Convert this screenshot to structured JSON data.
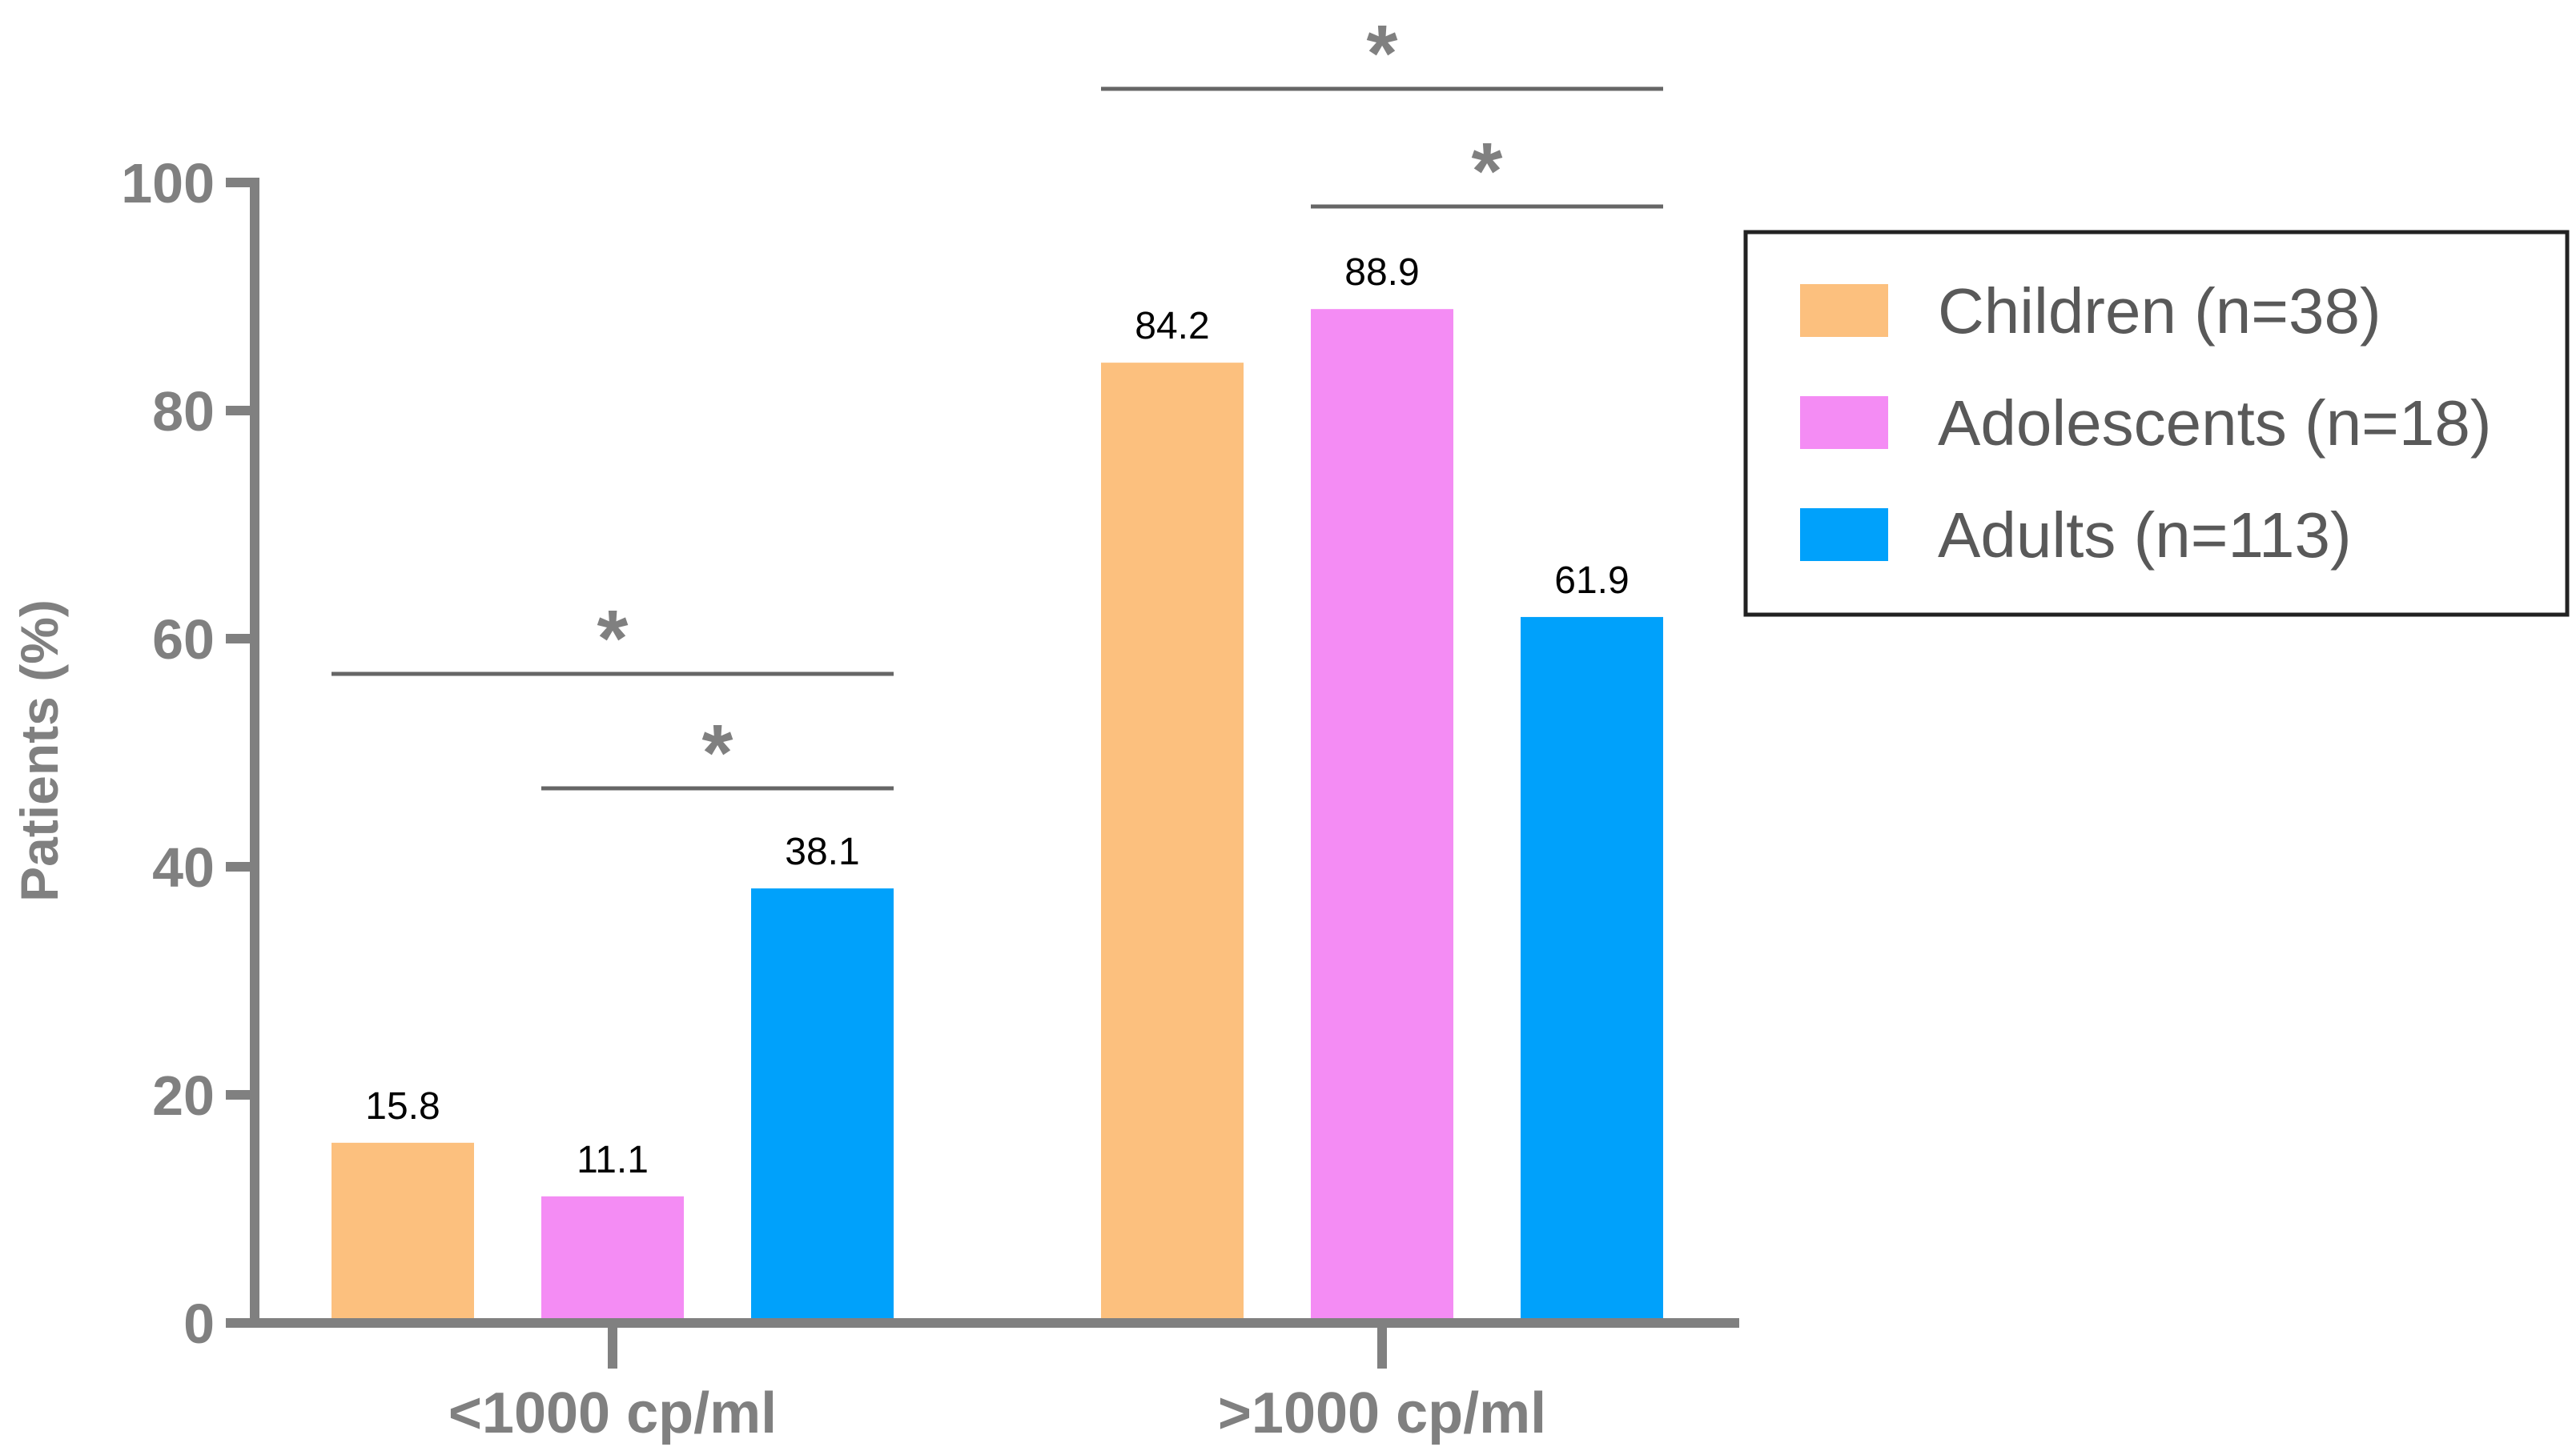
{
  "chart_data": {
    "type": "bar",
    "title": "",
    "xlabel": "",
    "ylabel": "Patients (%)",
    "ylim": [
      0,
      100
    ],
    "yticks": [
      0,
      20,
      40,
      60,
      80,
      100
    ],
    "categories": [
      "<1000 cp/ml",
      ">1000 cp/ml"
    ],
    "series": [
      {
        "name": "Children (n=38)",
        "color": "#FCC07E",
        "values": [
          15.8,
          84.2
        ],
        "labels": [
          "15.8",
          "84.2"
        ]
      },
      {
        "name": "Adolescents (n=18)",
        "color": "#F48CF4",
        "values": [
          11.1,
          88.9
        ],
        "labels": [
          "11.1",
          "88.9"
        ]
      },
      {
        "name": "Adults (n=113)",
        "color": "#00A1FB",
        "values": [
          38.1,
          61.9
        ],
        "labels": [
          "38.1",
          "61.9"
        ]
      }
    ],
    "legend_position": "top-right",
    "significance": [
      {
        "category": 0,
        "from_series": 0,
        "to_series": 2,
        "symbol": "*"
      },
      {
        "category": 0,
        "from_series": 1,
        "to_series": 2,
        "symbol": "*"
      },
      {
        "category": 1,
        "from_series": 0,
        "to_series": 2,
        "symbol": "*"
      },
      {
        "category": 1,
        "from_series": 1,
        "to_series": 2,
        "symbol": "*"
      }
    ]
  }
}
